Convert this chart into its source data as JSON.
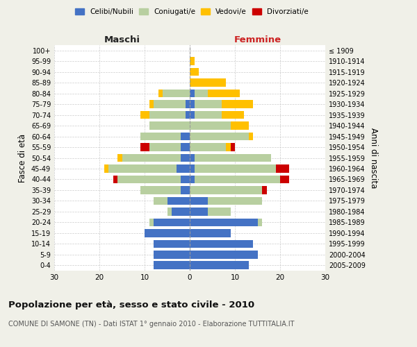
{
  "age_groups": [
    "0-4",
    "5-9",
    "10-14",
    "15-19",
    "20-24",
    "25-29",
    "30-34",
    "35-39",
    "40-44",
    "45-49",
    "50-54",
    "55-59",
    "60-64",
    "65-69",
    "70-74",
    "75-79",
    "80-84",
    "85-89",
    "90-94",
    "95-99",
    "100+"
  ],
  "birth_years": [
    "2005-2009",
    "2000-2004",
    "1995-1999",
    "1990-1994",
    "1985-1989",
    "1980-1984",
    "1975-1979",
    "1970-1974",
    "1965-1969",
    "1960-1964",
    "1955-1959",
    "1950-1954",
    "1945-1949",
    "1940-1944",
    "1935-1939",
    "1930-1934",
    "1925-1929",
    "1920-1924",
    "1915-1919",
    "1910-1914",
    "≤ 1909"
  ],
  "male": {
    "celibi": [
      8,
      8,
      8,
      10,
      8,
      4,
      5,
      2,
      2,
      3,
      2,
      2,
      2,
      0,
      1,
      1,
      0,
      0,
      0,
      0,
      0
    ],
    "coniugati": [
      0,
      0,
      0,
      0,
      1,
      1,
      3,
      9,
      14,
      15,
      13,
      7,
      9,
      9,
      8,
      7,
      6,
      0,
      0,
      0,
      0
    ],
    "vedovi": [
      0,
      0,
      0,
      0,
      0,
      0,
      0,
      0,
      0,
      1,
      1,
      0,
      0,
      0,
      2,
      1,
      1,
      0,
      0,
      0,
      0
    ],
    "divorziati": [
      0,
      0,
      0,
      0,
      0,
      0,
      0,
      0,
      1,
      0,
      0,
      2,
      0,
      0,
      0,
      0,
      0,
      0,
      0,
      0,
      0
    ]
  },
  "female": {
    "nubili": [
      13,
      15,
      14,
      9,
      15,
      4,
      4,
      0,
      1,
      1,
      1,
      0,
      0,
      0,
      1,
      1,
      1,
      0,
      0,
      0,
      0
    ],
    "coniugate": [
      0,
      0,
      0,
      0,
      1,
      5,
      12,
      16,
      19,
      18,
      17,
      8,
      13,
      9,
      6,
      6,
      3,
      0,
      0,
      0,
      0
    ],
    "vedove": [
      0,
      0,
      0,
      0,
      0,
      0,
      0,
      0,
      0,
      0,
      0,
      1,
      1,
      4,
      5,
      7,
      7,
      8,
      2,
      1,
      0
    ],
    "divorziate": [
      0,
      0,
      0,
      0,
      0,
      0,
      0,
      1,
      2,
      3,
      0,
      1,
      0,
      0,
      0,
      0,
      0,
      0,
      0,
      0,
      0
    ]
  },
  "colors": {
    "celibi": "#4472c4",
    "coniugati": "#b8cfa0",
    "vedovi": "#ffc000",
    "divorziati": "#cc0000"
  },
  "xlim": 30,
  "title": "Popolazione per età, sesso e stato civile - 2010",
  "subtitle": "COMUNE DI SAMONE (TN) - Dati ISTAT 1° gennaio 2010 - Elaborazione TUTTITALIA.IT",
  "ylabel_left": "Fasce di età",
  "ylabel_right": "Anni di nascita",
  "xlabel_maschi": "Maschi",
  "xlabel_femmine": "Femmine",
  "bg_color": "#f0f0e8",
  "plot_bg": "#ffffff"
}
